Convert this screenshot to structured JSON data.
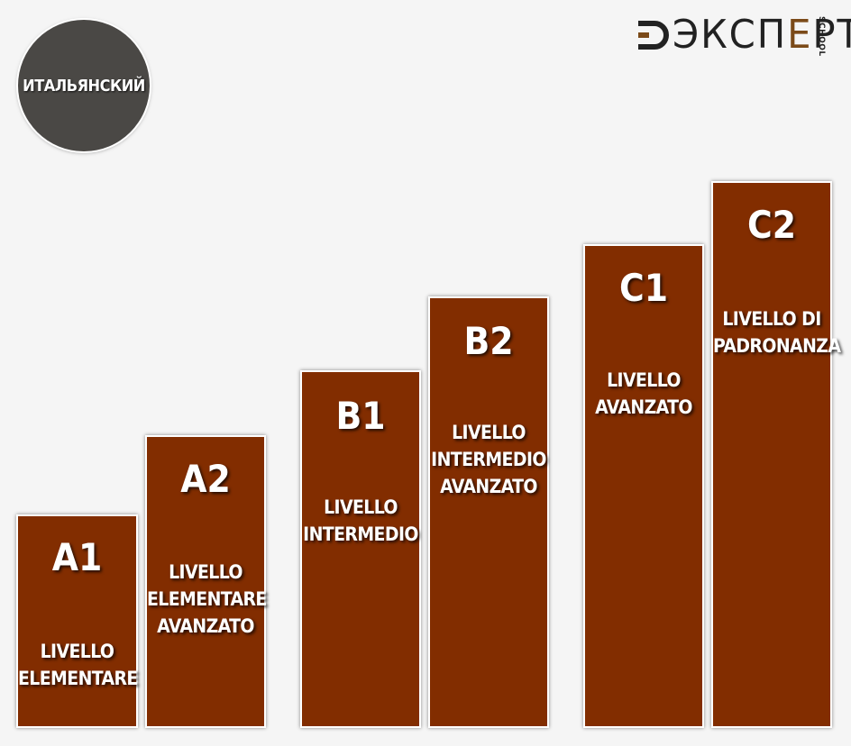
{
  "badge": {
    "text": "ИТАЛЬЯНСКИЙ"
  },
  "logo": {
    "main": "ЭКСП",
    "accent": "Е",
    "tail": "РТ",
    "school": "SCHOOL"
  },
  "colors": {
    "bar": "#822d00",
    "badge": "#4a4845",
    "logo_accent": "#7b4a18",
    "background": "#f5f5f5"
  },
  "levels": [
    {
      "code": "A1",
      "desc": "LIVELLO\nELEMENTARE"
    },
    {
      "code": "A2",
      "desc": "LIVELLO\nELEMENTARE\nAVANZATO"
    },
    {
      "code": "B1",
      "desc": "LIVELLO\nINTERMEDIO"
    },
    {
      "code": "B2",
      "desc": "LIVELLO\nINTERMEDIO\nAVANZATO"
    },
    {
      "code": "C1",
      "desc": "LIVELLO\nAVANZATO"
    },
    {
      "code": "C2",
      "desc": "LIVELLO DI\nPADRONANZA"
    }
  ]
}
